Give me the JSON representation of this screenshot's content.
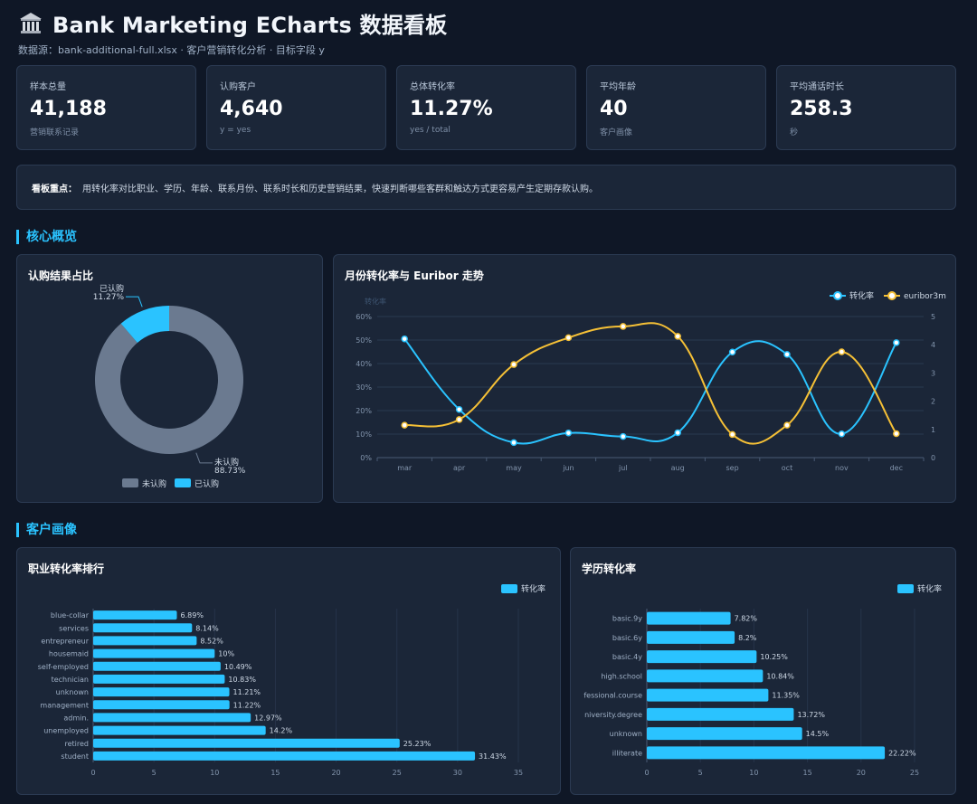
{
  "header": {
    "title": "Bank Marketing ECharts 数据看板",
    "subtitle": "数据源：bank-additional-full.xlsx · 客户营销转化分析 · 目标字段 y"
  },
  "kpis": [
    {
      "label": "样本总量",
      "value": "41,188",
      "sub": "营销联系记录"
    },
    {
      "label": "认购客户",
      "value": "4,640",
      "sub": "y = yes"
    },
    {
      "label": "总体转化率",
      "value": "11.27%",
      "sub": "yes / total"
    },
    {
      "label": "平均年龄",
      "value": "40",
      "sub": "客户画像"
    },
    {
      "label": "平均通话时长",
      "value": "258.3",
      "sub": "秒"
    }
  ],
  "focus": {
    "label": "看板重点：",
    "text": "用转化率对比职业、学历、年龄、联系月份、联系时长和历史营销结果，快速判断哪些客群和触达方式更容易产生定期存款认购。"
  },
  "sections": {
    "overview": "核心概览",
    "profile": "客户画像"
  },
  "colors": {
    "accent": "#2ac3ff",
    "gold": "#f5c036",
    "gray": "#6b7a90"
  },
  "charts": {
    "donut": {
      "title": "认购结果占比",
      "chart_data": {
        "type": "pie",
        "slices": [
          {
            "name": "未认购",
            "value": 88.73,
            "label_name": "未认购",
            "label_pct": "88.73%"
          },
          {
            "name": "已认购",
            "value": 11.27,
            "label_name": "已认购",
            "label_pct": "11.27%"
          }
        ],
        "legend": [
          "未认购",
          "已认购"
        ]
      }
    },
    "monthly": {
      "title": "月份转化率与 Euribor 走势",
      "chart_data": {
        "type": "line",
        "categories": [
          "mar",
          "apr",
          "may",
          "jun",
          "jul",
          "aug",
          "sep",
          "oct",
          "nov",
          "dec"
        ],
        "ylabel": "转化率",
        "y_ticks": [
          "0%",
          "10%",
          "20%",
          "30%",
          "40%",
          "50%",
          "60%"
        ],
        "y2_ticks": [
          "0",
          "1",
          "2",
          "3",
          "4",
          "5"
        ],
        "ylim": [
          0,
          60
        ],
        "y2lim": [
          0,
          5
        ],
        "series": [
          {
            "name": "转化率",
            "axis": "left",
            "values": [
              50.5,
              20.5,
              6.4,
              10.5,
              9.0,
              10.6,
              44.9,
              43.9,
              10.1,
              48.9
            ]
          },
          {
            "name": "euribor3m",
            "axis": "right",
            "values": [
              1.15,
              1.35,
              3.3,
              4.25,
              4.65,
              4.3,
              0.82,
              1.15,
              3.75,
              0.85
            ]
          }
        ]
      }
    },
    "job": {
      "title": "职业转化率排行",
      "chart_data": {
        "type": "bar",
        "orientation": "horizontal",
        "legend": "转化率",
        "categories": [
          "blue-collar",
          "services",
          "entrepreneur",
          "housemaid",
          "self-employed",
          "technician",
          "unknown",
          "management",
          "admin.",
          "unemployed",
          "retired",
          "student"
        ],
        "values": [
          6.89,
          8.14,
          8.52,
          10,
          10.49,
          10.83,
          11.21,
          11.22,
          12.97,
          14.2,
          25.23,
          31.43
        ],
        "labels": [
          "6.89%",
          "8.14%",
          "8.52%",
          "10%",
          "10.49%",
          "10.83%",
          "11.21%",
          "11.22%",
          "12.97%",
          "14.2%",
          "25.23%",
          "31.43%"
        ],
        "x_ticks": [
          "0",
          "5",
          "10",
          "15",
          "20",
          "25",
          "30",
          "35"
        ],
        "xlim": [
          0,
          35
        ]
      }
    },
    "edu": {
      "title": "学历转化率",
      "chart_data": {
        "type": "bar",
        "orientation": "horizontal",
        "legend": "转化率",
        "categories": [
          "basic.9y",
          "basic.6y",
          "basic.4y",
          "high.school",
          "fessional.course",
          "niversity.degree",
          "unknown",
          "illiterate"
        ],
        "values": [
          7.82,
          8.2,
          10.25,
          10.84,
          11.35,
          13.72,
          14.5,
          22.22
        ],
        "labels": [
          "7.82%",
          "8.2%",
          "10.25%",
          "10.84%",
          "11.35%",
          "13.72%",
          "14.5%",
          "22.22%"
        ],
        "x_ticks": [
          "0",
          "5",
          "10",
          "15",
          "20",
          "25"
        ],
        "xlim": [
          0,
          25
        ]
      }
    }
  }
}
